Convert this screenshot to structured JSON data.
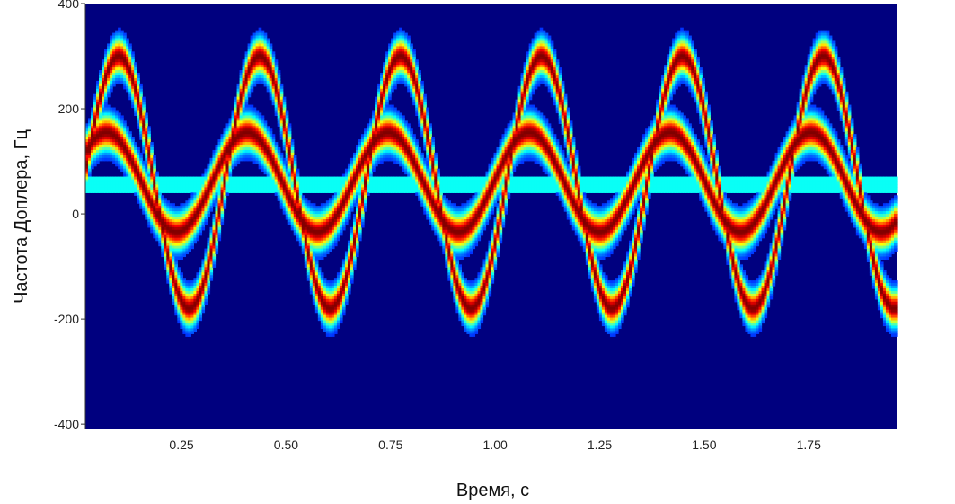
{
  "chart_data": {
    "type": "heatmap",
    "title": "",
    "xlabel": "Время, с",
    "ylabel": "Частота Доплера, Гц",
    "xlim": [
      0.02,
      1.96
    ],
    "ylim": [
      -410,
      400
    ],
    "x_ticks": [
      0.25,
      0.5,
      0.75,
      1.0,
      1.25,
      1.5,
      1.75
    ],
    "x_tick_labels": [
      "0.25",
      "0.50",
      "0.75",
      "1.00",
      "1.25",
      "1.50",
      "1.75"
    ],
    "y_ticks": [
      400,
      200,
      0,
      -200,
      -400
    ],
    "y_tick_labels": [
      "400",
      "200",
      "0",
      "-200",
      "-400"
    ],
    "colormap": "jet",
    "background_color": "#00007f",
    "period_s": 0.337,
    "components": [
      {
        "kind": "sinusoid",
        "center_hz": 60,
        "amplitude_hz": 240,
        "peak_time_s": 0.1,
        "intensity": 1.0
      },
      {
        "kind": "sinusoid",
        "center_hz": 60,
        "amplitude_hz": 95,
        "peak_time_s": 0.07,
        "intensity": 1.0
      },
      {
        "kind": "constant",
        "center_hz": 55,
        "intensity": 0.3
      }
    ],
    "grid": false
  }
}
